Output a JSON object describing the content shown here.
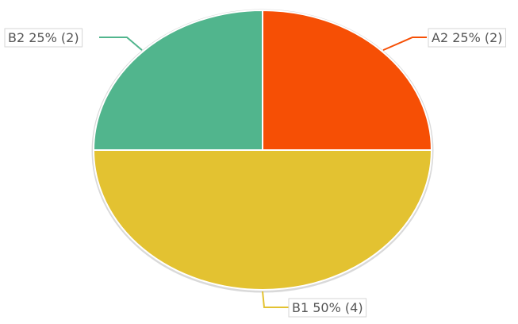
{
  "chart_data": {
    "type": "pie",
    "title": "",
    "slices": [
      {
        "label": "A2",
        "percent": 25,
        "count": 2,
        "display": "A2 25% (2)",
        "color": "#f64f05"
      },
      {
        "label": "B1",
        "percent": 50,
        "count": 4,
        "display": "B1 50% (4)",
        "color": "#e3c231"
      },
      {
        "label": "B2",
        "percent": 25,
        "count": 2,
        "display": "B2 25% (2)",
        "color": "#51b58d"
      }
    ],
    "start_angle": "12 o'clock",
    "direction": "clockwise",
    "legend": "none",
    "data_labels": "outside with leader lines"
  }
}
